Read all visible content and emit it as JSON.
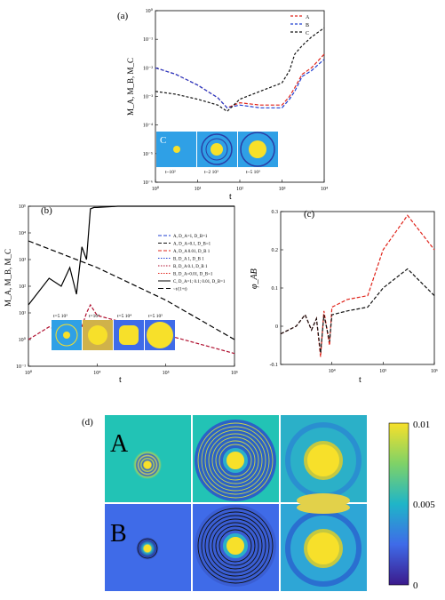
{
  "panels": {
    "a": {
      "label": "(a)",
      "ylabel": "M_A, M_B, M_C",
      "xlabel": "t",
      "yticks": [
        "10⁻⁶",
        "10⁻⁵",
        "10⁻⁴",
        "10⁻³",
        "10⁻²",
        "10⁻¹",
        "10⁰"
      ],
      "xticks": [
        "10⁰",
        "10¹",
        "10²",
        "10³",
        "10⁴"
      ],
      "legend": [
        "A",
        "B",
        "C"
      ],
      "inset": {
        "letter": "C",
        "captions": [
          "t~10²",
          "t~2 10³",
          "t~5 10³"
        ]
      }
    },
    "b": {
      "label": "(b)",
      "ylabel": "M_A, M_B, M_C",
      "xlabel": "t",
      "yticks": [
        "10⁻¹",
        "10⁰",
        "10¹",
        "10²",
        "10³",
        "10⁴",
        "10⁵"
      ],
      "xticks": [
        "10⁰",
        "10⁴",
        "10⁵",
        "10⁶"
      ],
      "legend": [
        "A, D_A=1, D_B=1",
        "A, D_A=0.1, D_B=1",
        "A, D_A 0.01, D_B 1",
        "B, D_A 1, D_B 1",
        "B, D_A 0.1, D_B 1",
        "B, D_A=0.01, D_B=1",
        "C, D_A=1; 0.1; 0.01, D_B=1",
        "~t/(1+t)"
      ],
      "inset_captions": [
        "t=5 10³",
        "t=10⁴",
        "t=5 10⁴",
        "t=5 10⁵"
      ]
    },
    "c": {
      "label": "(c)",
      "ylabel": "φ_AB",
      "xlabel": "t",
      "yticks": [
        "0.3",
        "0.2",
        "0.1",
        "0",
        "-0.1"
      ],
      "xticks": [
        "10⁴",
        "10⁵",
        "10⁶"
      ]
    },
    "d": {
      "label": "(d)",
      "row_labels": [
        "A",
        "B"
      ],
      "colorbar_ticks": [
        "0.01",
        "0.005",
        "0"
      ]
    }
  },
  "chart_data": [
    {
      "type": "line",
      "panel": "a",
      "xscale": "log",
      "yscale": "log",
      "xlim": [
        1,
        10000
      ],
      "ylim": [
        1e-06,
        1
      ],
      "series": [
        {
          "name": "A",
          "color": "#e0241b",
          "x": [
            1,
            3,
            10,
            30,
            50,
            100,
            300,
            1000,
            1500,
            2000,
            3000,
            5000,
            10000
          ],
          "y": [
            0.01,
            0.006,
            0.0025,
            0.0009,
            0.0004,
            0.0006,
            0.0005,
            0.0005,
            0.001,
            0.002,
            0.006,
            0.01,
            0.03
          ]
        },
        {
          "name": "B",
          "color": "#1f3fd1",
          "x": [
            1,
            3,
            10,
            30,
            50,
            100,
            300,
            1000,
            1500,
            2000,
            3000,
            5000,
            10000
          ],
          "y": [
            0.01,
            0.006,
            0.0025,
            0.0009,
            0.0004,
            0.0005,
            0.0004,
            0.0004,
            0.0008,
            0.0015,
            0.005,
            0.008,
            0.02
          ]
        },
        {
          "name": "C",
          "color": "#111111",
          "x": [
            1,
            3,
            10,
            30,
            50,
            100,
            300,
            1000,
            1500,
            2000,
            3000,
            5000,
            10000
          ],
          "y": [
            0.0015,
            0.0012,
            0.0008,
            0.0005,
            0.0003,
            0.0008,
            0.0015,
            0.003,
            0.008,
            0.03,
            0.06,
            0.12,
            0.25
          ]
        }
      ]
    },
    {
      "type": "line",
      "panel": "b",
      "xscale": "log",
      "yscale": "log",
      "xlim": [
        1000,
        1000000
      ],
      "ylim": [
        0.1,
        100000
      ],
      "series": [
        {
          "name": "A/B (D_B=1)",
          "color": "#b01030",
          "x": [
            1000,
            2000,
            3000,
            4000,
            5000,
            6000,
            7000,
            8000,
            10000,
            20000,
            50000,
            100000,
            1000000
          ],
          "y": [
            1,
            3,
            2,
            3,
            0.8,
            3,
            10,
            20,
            8,
            5,
            3,
            1.5,
            0.3
          ]
        },
        {
          "name": "C, D_A=1; 0.1; 0.01, D_B=1",
          "color": "#000000",
          "x": [
            1000,
            2000,
            3000,
            4000,
            5000,
            6000,
            7000,
            8000,
            9000,
            10000,
            20000,
            100000,
            1000000
          ],
          "y": [
            20,
            200,
            100,
            500,
            50,
            3000,
            1000,
            80000,
            90000,
            90000,
            100000,
            100000,
            100000
          ]
        },
        {
          "name": "~t/(1+t)",
          "color": "#000000",
          "x": [
            1000,
            10000,
            100000,
            1000000
          ],
          "y": [
            5000,
            500,
            30,
            1
          ]
        }
      ]
    },
    {
      "type": "line",
      "panel": "c",
      "xscale": "log",
      "xlim": [
        1000,
        1000000
      ],
      "ylim": [
        -0.1,
        0.3
      ],
      "series": [
        {
          "name": "red",
          "color": "#e0241b",
          "x": [
            1000,
            2000,
            3000,
            4000,
            5000,
            6000,
            7000,
            9000,
            10000,
            20000,
            50000,
            100000,
            300000,
            1000000
          ],
          "y": [
            -0.02,
            0.0,
            0.03,
            -0.01,
            0.02,
            -0.08,
            0.04,
            -0.05,
            0.05,
            0.07,
            0.08,
            0.2,
            0.29,
            0.2
          ]
        },
        {
          "name": "black",
          "color": "#111111",
          "x": [
            1000,
            2000,
            3000,
            4000,
            5000,
            6000,
            7000,
            9000,
            10000,
            20000,
            50000,
            100000,
            300000,
            1000000
          ],
          "y": [
            -0.02,
            0.0,
            0.03,
            -0.01,
            0.02,
            -0.07,
            0.03,
            -0.04,
            0.03,
            0.04,
            0.05,
            0.1,
            0.15,
            0.08
          ]
        }
      ]
    }
  ],
  "colors": {
    "A_bg": "#22c3b5",
    "B_bg": "#3f6be8",
    "inset_bg": "#2fa0e6",
    "yellow": "#f7e02a"
  }
}
